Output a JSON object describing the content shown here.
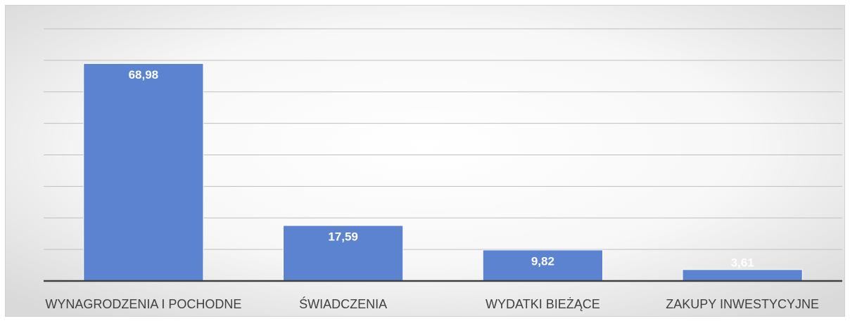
{
  "chart_data": {
    "type": "bar",
    "categories": [
      "WYNAGRODZENIA I POCHODNE",
      "ŚWIADCZENIA",
      "WYDATKI BIEŻĄCE",
      "ZAKUPY INWESTYCYJNE"
    ],
    "values": [
      68.98,
      17.59,
      9.82,
      3.61
    ],
    "value_labels": [
      "68,98",
      "17,59",
      "9,82",
      "3,61"
    ],
    "color": "#5b83cf",
    "ylim": [
      0,
      80
    ],
    "yticks": [
      0,
      10,
      20,
      30,
      40,
      50,
      60,
      70,
      80
    ],
    "grid": true
  }
}
